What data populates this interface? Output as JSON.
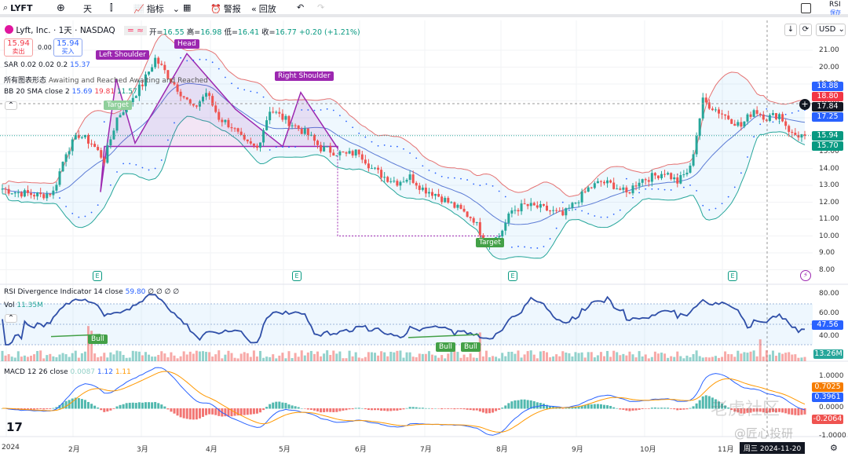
{
  "toolbar": {
    "symbol": "LYFT",
    "interval": "天",
    "indicators": "指标",
    "alert": "警报",
    "replay": "回放",
    "layout_name": "RSI",
    "save": "保存"
  },
  "legend": {
    "title": "Lyft, Inc. · 1天 · NASDAQ",
    "open_label": "开",
    "open": "16.55",
    "high_label": "高",
    "high": "16.98",
    "low_label": "低",
    "low": "16.41",
    "close_label": "收",
    "close": "16.77",
    "change": "+0.20 (+1.21%)",
    "sell_price": "15.94",
    "sell_label": "卖出",
    "spread": "0.00",
    "buy_price": "15.94",
    "buy_label": "买入",
    "sar": "SAR 0.02 0.02 0.2",
    "sar_val": "15.37",
    "patterns": "所有图表形态",
    "patterns_val": "Awaiting and Reached Awaiting and Reached",
    "bb": "BB 20 SMA close 2",
    "bb_mid": "15.69",
    "bb_up": "19.81",
    "bb_low": "11.57"
  },
  "annotations": {
    "head": "Head",
    "left_shoulder": "Left Shoulder",
    "right_shoulder": "Right Shoulder",
    "target1": "Target",
    "target2": "Target",
    "bull": "Bull",
    "earnings": "E"
  },
  "rsi": {
    "title": "RSI Divergence Indicator 14 close",
    "value": "59.80",
    "extras": "∅ ∅ ∅ ∅",
    "vol_label": "Vol",
    "vol_value": "11.35M",
    "axis": [
      "80.00",
      "60.00",
      "40.00"
    ],
    "current": "47.56",
    "vol_current": "13.26M"
  },
  "macd": {
    "title": "MACD 12 26 close",
    "hist": "0.0087",
    "macd": "1.12",
    "signal": "1.11",
    "axis": [
      "1.0000",
      "0.0000",
      "-1.0000"
    ],
    "labels": [
      "0.7025",
      "0.3961",
      "-0.2064"
    ]
  },
  "price_axis": {
    "currency": "USD",
    "ticks": [
      "21.00",
      "20.00",
      "19.00",
      "18.00",
      "17.00",
      "16.00",
      "15.00",
      "14.00",
      "13.00",
      "12.00",
      "11.00",
      "10.00",
      "9.00",
      "8.00"
    ],
    "labels": [
      {
        "v": "18.88",
        "c": "#2962ff"
      },
      {
        "v": "18.80",
        "c": "#f23645"
      },
      {
        "v": "17.84",
        "c": "#131722"
      },
      {
        "v": "17.25",
        "c": "#2962ff"
      },
      {
        "v": "15.94",
        "c": "#089981"
      },
      {
        "v": "15.70",
        "c": "#089981"
      }
    ]
  },
  "time_axis": [
    "2024",
    "2月",
    "3月",
    "4月",
    "5月",
    "6月",
    "7月",
    "8月",
    "9月",
    "10月",
    "11月"
  ],
  "crosshair_date": "周三 2024-11-20",
  "watermark": "@匠心投研",
  "watermark2": "老虎社区",
  "colors": {
    "up": "#26a69a",
    "down": "#ef5350",
    "bb_upper": "#e57373",
    "bb_lower": "#26a69a",
    "sma": "#5b7bd5",
    "pattern": "#9c27b0",
    "rsi": "#2f4fa8"
  },
  "chart_data": {
    "type": "candlestick",
    "symbol": "LYFT",
    "range": [
      "2024-01",
      "2024-11-22"
    ],
    "ylim": [
      8,
      21.5
    ],
    "close_approx": [
      12.8,
      12.6,
      12.5,
      12.4,
      12.6,
      15,
      16,
      15.5,
      14.5,
      17,
      18,
      19,
      20.5,
      19.5,
      18.5,
      17.5,
      18.5,
      17,
      16.5,
      15.5,
      15.2,
      17.5,
      17,
      16.5,
      16,
      15.2,
      15,
      14.8,
      15,
      14,
      13.5,
      13.2,
      13.5,
      12.8,
      12.5,
      12,
      11.5,
      11,
      9.5,
      10,
      11.5,
      11.8,
      11.7,
      11.5,
      11.2,
      12,
      12.8,
      13.2,
      13,
      12.5,
      13.3,
      13.5,
      13.8,
      13.2,
      14,
      18,
      17.5,
      17,
      16.5,
      17.5,
      17,
      17.2,
      16,
      15.94
    ]
  }
}
